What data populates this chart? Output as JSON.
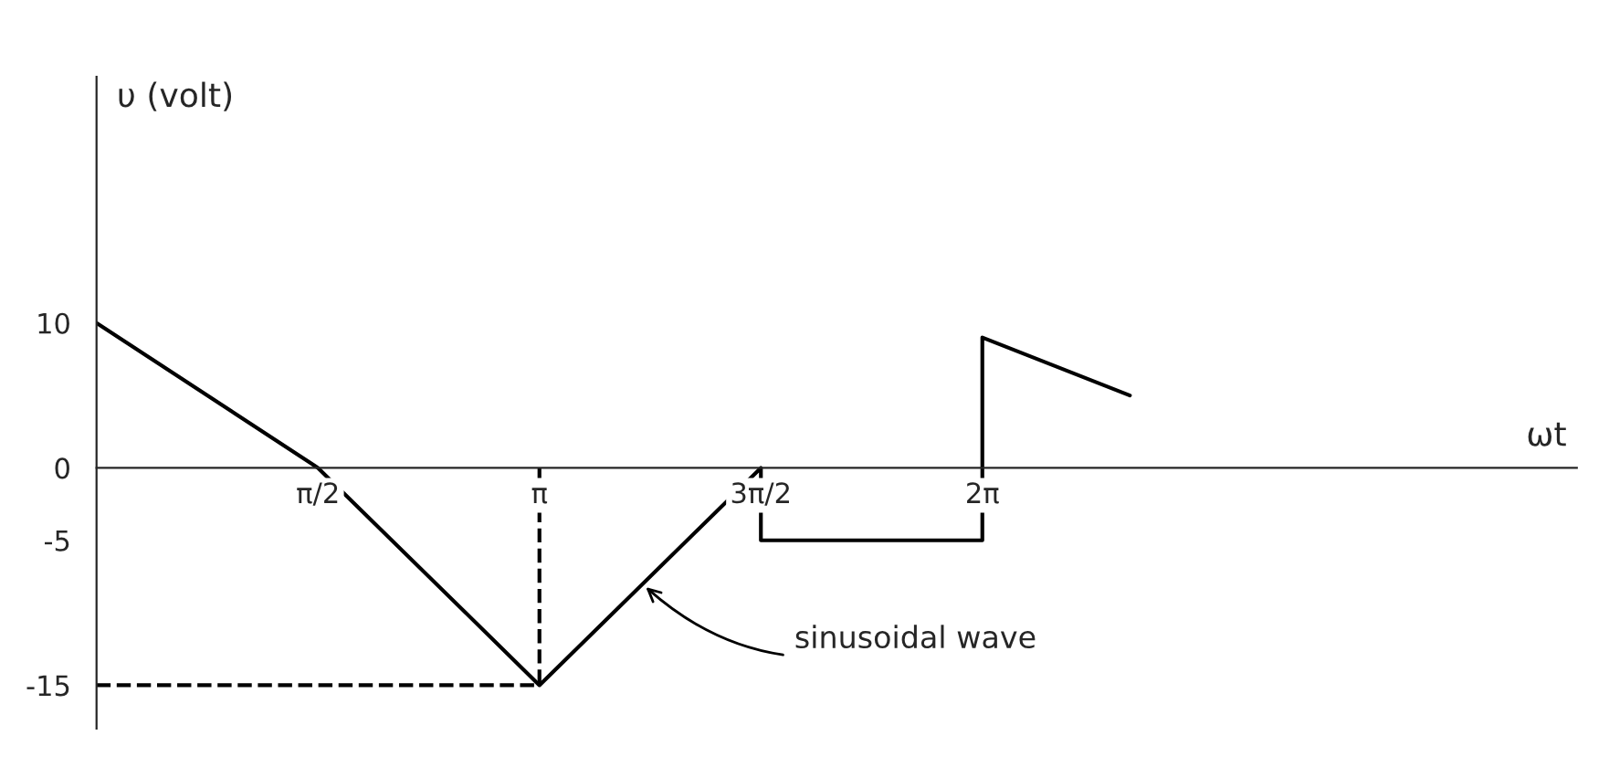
{
  "chart_data": {
    "type": "line",
    "xlabel": "ωt",
    "ylabel": "υ (volt)",
    "xlim": [
      0,
      10.5
    ],
    "ylim": [
      -18,
      27
    ],
    "xticks": [
      {
        "value": 1.5708,
        "label": "π/2"
      },
      {
        "value": 3.1416,
        "label": "π"
      },
      {
        "value": 4.7124,
        "label": "3π/2"
      },
      {
        "value": 6.2832,
        "label": "2π"
      }
    ],
    "yticks": [
      -15,
      -5,
      0,
      10
    ],
    "series": [
      {
        "color": "#000000",
        "line_style": "solid",
        "x": [
          0,
          1.5708,
          3.1416,
          4.7124,
          4.7124,
          6.2832,
          6.2832,
          7.33
        ],
        "values": [
          10,
          0,
          -15,
          0,
          -5,
          -5,
          9,
          5
        ]
      },
      {
        "color": "#000000",
        "line_style": "dashed",
        "x": [
          0,
          3.1416
        ],
        "values": [
          -15,
          -15
        ]
      },
      {
        "color": "#000000",
        "line_style": "dashed",
        "x": [
          3.1416,
          3.1416
        ],
        "values": [
          0,
          -15
        ]
      }
    ],
    "annotations": [
      {
        "text": "sinusoidal wave",
        "x": 3.87,
        "y": -8
      }
    ],
    "grid": false,
    "legend": false,
    "marker": "none"
  }
}
